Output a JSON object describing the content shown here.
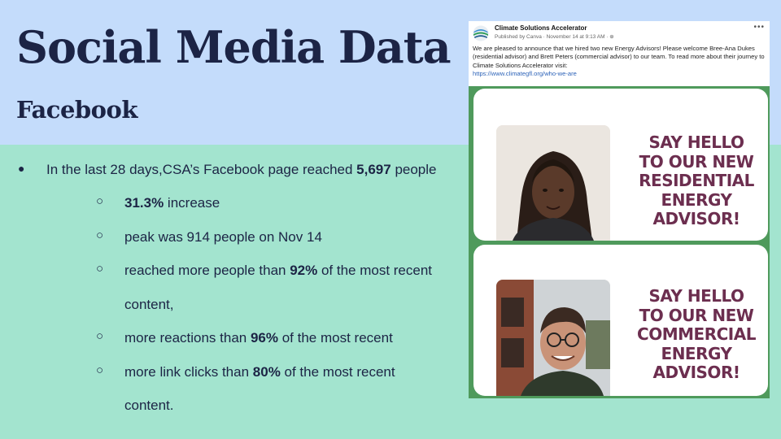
{
  "slide": {
    "title": "Social Media Data",
    "subtitle": "Facebook",
    "colors": {
      "top_band": "#c4dcfb",
      "bottom_band": "#a3e4cf",
      "heading": "#1c2445"
    }
  },
  "stats": {
    "main": {
      "bullet": "●",
      "pre": "In the last 28 days,CSA’s Facebook page reached ",
      "bold": "5,697",
      "post": " people"
    },
    "sub_bullet": "○",
    "increase": {
      "bold": "31.3%",
      "post": " increase"
    },
    "peak": {
      "text": "peak was 914 people on Nov 14"
    },
    "reach": {
      "pre": "reached more people than ",
      "bold": "92%",
      "post": " of the most recent",
      "cont": "content,"
    },
    "reactions": {
      "pre": "more reactions than ",
      "bold": "96%",
      "post": " of the most recent"
    },
    "clicks": {
      "pre": "more link clicks than ",
      "bold": "80%",
      "post": " of the most recent",
      "cont": "content."
    }
  },
  "facebook_post": {
    "page_name": "Climate Solutions Accelerator",
    "meta": "Published by Canva · November 14 at 9:13 AM · ⊕",
    "more_icon": "more-options-icon",
    "more_glyph": "•••",
    "text": "We are pleased to announce that we hired two new Energy Advisors! Please welcome Bree-Ana Dukes (residential advisor) and Brett Peters (commercial advisor) to our team. To read more about their journey to Climate Solutions Accelerator visit:",
    "link": "https://www.climategfl.org/who-we-are",
    "panels": [
      {
        "lines": [
          "SAY HELLO",
          "TO OUR NEW",
          "RESIDENTIAL",
          "ENERGY",
          "ADVISOR!"
        ]
      },
      {
        "lines": [
          "SAY HELLO",
          "TO OUR NEW",
          "COMMERCIAL",
          "ENERGY",
          "ADVISOR!"
        ]
      }
    ],
    "colors": {
      "frame": "#4f9a5c",
      "announce_text": "#6c2e4f",
      "link": "#2d63b8"
    }
  }
}
